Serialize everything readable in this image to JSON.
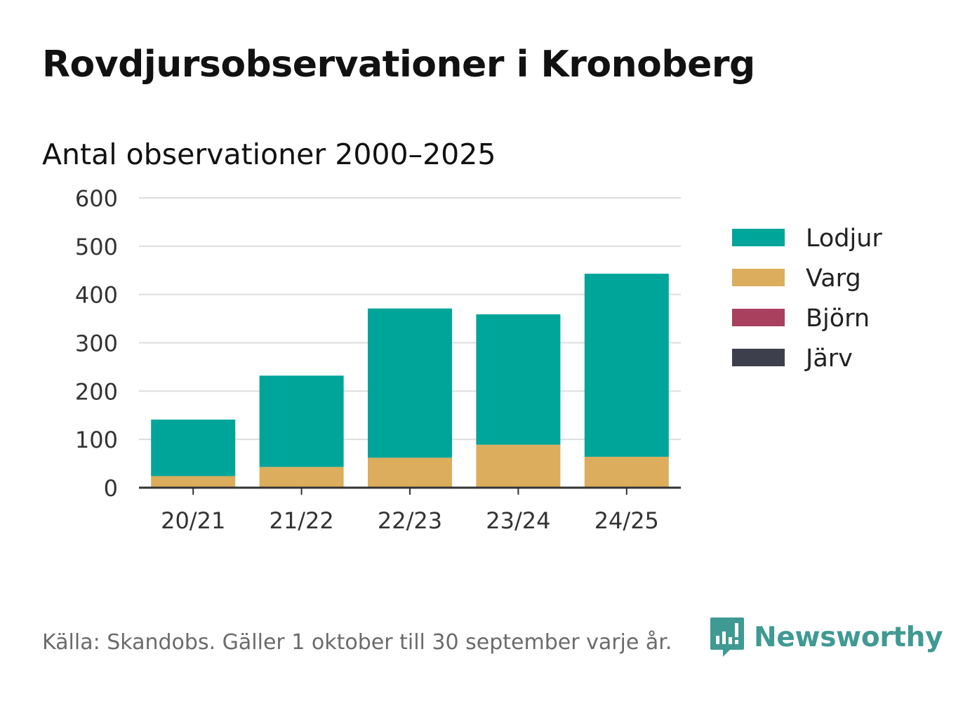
{
  "title": "Rovdjursobservationer i Kronoberg",
  "subtitle": "Antal observationer 2000–2025",
  "footer": {
    "source": "Källa: Skandobs. Gäller 1 oktober till 30 september varje år.",
    "brand": "Newsworthy"
  },
  "colors": {
    "Lodjur": "#00a59a",
    "Varg": "#dbad5d",
    "Björn": "#a8405e",
    "Järv": "#3e3f4d",
    "grid": "#dddddd",
    "axis": "#333333",
    "brand": "#3f9a93"
  },
  "chart_data": {
    "type": "bar",
    "stacked": true,
    "categories": [
      "20/21",
      "21/22",
      "22/23",
      "23/24",
      "24/25"
    ],
    "series": [
      {
        "name": "Varg",
        "values": [
          24,
          43,
          62,
          89,
          64
        ]
      },
      {
        "name": "Lodjur",
        "values": [
          117,
          189,
          309,
          270,
          379
        ]
      },
      {
        "name": "Björn",
        "values": [
          0,
          0,
          0,
          0,
          0
        ]
      },
      {
        "name": "Järv",
        "values": [
          0,
          0,
          0,
          0,
          0
        ]
      }
    ],
    "legend": [
      "Lodjur",
      "Varg",
      "Björn",
      "Järv"
    ],
    "legend_position": "right",
    "yticks": [
      0,
      100,
      200,
      300,
      400,
      500,
      600
    ],
    "ylim": [
      0,
      600
    ],
    "grid": true,
    "xlabel": "",
    "ylabel": ""
  }
}
